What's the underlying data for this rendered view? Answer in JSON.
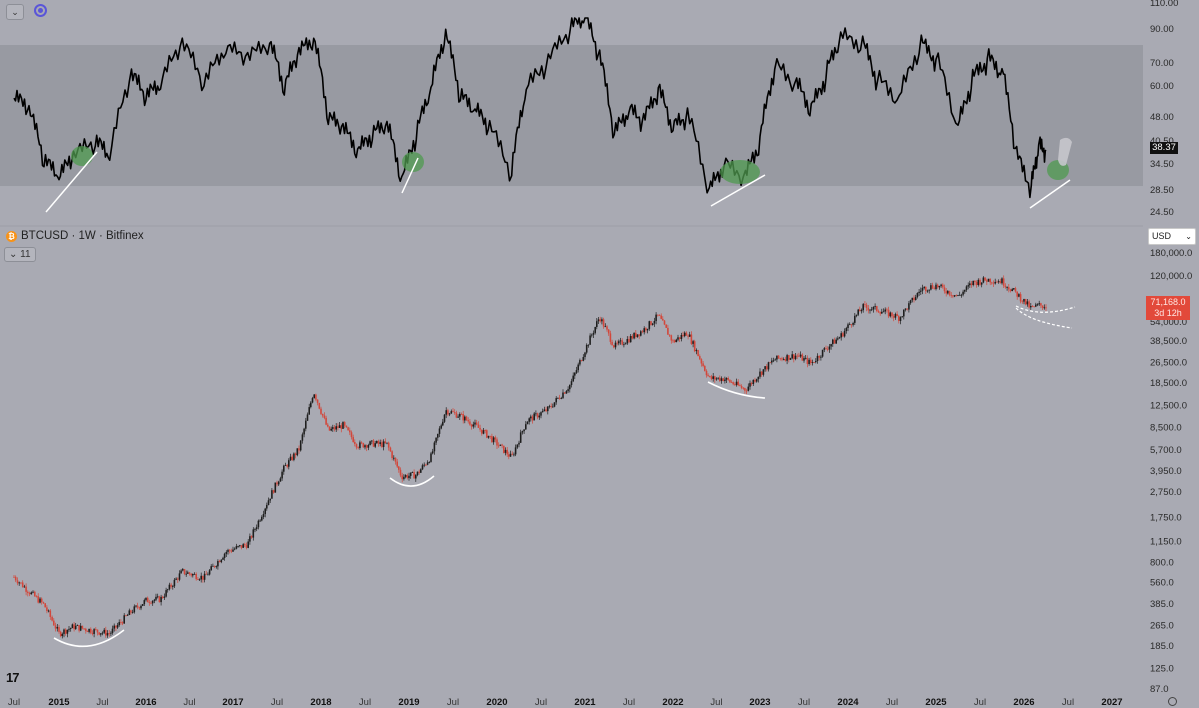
{
  "colors": {
    "background": "#a9aab3",
    "rsi_band": "#989aa2",
    "rsi_line": "#000000",
    "candle_up": "#1e1e1e",
    "candle_down": "#d2473b",
    "highlight_green": "#4f9a4f",
    "annotation_white": "#ffffff",
    "price_tag": "#e2493a"
  },
  "icons": [
    "chevron-down-icon",
    "sync-icon",
    "bitcoin-icon",
    "tradingview-logo-icon",
    "settings-icon"
  ],
  "header": {
    "chevron_glyph": "⌄",
    "sync_icon": "sync-icon"
  },
  "symbol": {
    "text": "BTCUSD · 1W · Bitfinex",
    "icon_letter": "₿",
    "count_label": "⌄ 11"
  },
  "currency_select": {
    "value": "USD"
  },
  "rsi_panel": {
    "current_value": "38.37",
    "axis_ticks": [
      "110.00",
      "90.00",
      "70.00",
      "60.00",
      "48.00",
      "40.50",
      "34.50",
      "28.50",
      "24.50"
    ],
    "band": [
      30,
      70
    ]
  },
  "price_panel": {
    "current_price": "71,168.0",
    "countdown": "3d 12h",
    "axis_ticks": [
      "180,000.0",
      "120,000.0",
      "80,000.0",
      "54,000.0",
      "38,500.0",
      "26,500.0",
      "18,500.0",
      "12,500.0",
      "8,500.0",
      "5,700.0",
      "3,950.0",
      "2,750.0",
      "1,750.0",
      "1,150.0",
      "800.0",
      "560.0",
      "385.0",
      "265.0",
      "185.0",
      "125.0",
      "87.0"
    ]
  },
  "time_axis": [
    "Jul",
    "2015",
    "Jul",
    "2016",
    "Jul",
    "2017",
    "Jul",
    "2018",
    "Jul",
    "2019",
    "Jul",
    "2020",
    "Jul",
    "2021",
    "Jul",
    "2022",
    "Jul",
    "2023",
    "Jul",
    "2024",
    "Jul",
    "2025",
    "Jul",
    "2026",
    "Jul",
    "2027"
  ],
  "logo": {
    "text": "17"
  },
  "chart_data": [
    {
      "type": "line",
      "title": "",
      "y_scale": "log",
      "ylim": [
        22,
        112
      ],
      "band_fill": [
        30,
        70
      ],
      "x": [
        "2014-07",
        "2014-09",
        "2014-11",
        "2015-01",
        "2015-03",
        "2015-06",
        "2015-08",
        "2015-11",
        "2016-01",
        "2016-03",
        "2016-06",
        "2016-09",
        "2016-12",
        "2017-03",
        "2017-06",
        "2017-08",
        "2017-10",
        "2017-12",
        "2018-02",
        "2018-04",
        "2018-06",
        "2018-08",
        "2018-10",
        "2018-12",
        "2019-02",
        "2019-04",
        "2019-06",
        "2019-08",
        "2019-10",
        "2019-12",
        "2020-03",
        "2020-05",
        "2020-08",
        "2020-11",
        "2021-01",
        "2021-03",
        "2021-05",
        "2021-07",
        "2021-09",
        "2021-11",
        "2022-01",
        "2022-03",
        "2022-06",
        "2022-08",
        "2022-11",
        "2023-01",
        "2023-03",
        "2023-06",
        "2023-08",
        "2023-10",
        "2023-12",
        "2024-03",
        "2024-05",
        "2024-08",
        "2024-11",
        "2025-01",
        "2025-04",
        "2025-06",
        "2025-08",
        "2025-10",
        "2025-12",
        "2026-02",
        "2026-03",
        "2026-04"
      ],
      "series": [
        {
          "values": [
            55,
            50,
            35,
            31,
            36,
            40,
            36,
            64,
            55,
            60,
            80,
            60,
            77,
            72,
            80,
            58,
            75,
            82,
            47,
            44,
            37,
            42,
            45,
            30,
            42,
            58,
            85,
            55,
            50,
            44,
            32,
            58,
            70,
            90,
            98,
            72,
            42,
            50,
            46,
            58,
            44,
            48,
            28,
            34,
            31,
            40,
            68,
            60,
            50,
            64,
            84,
            80,
            62,
            54,
            80,
            72,
            44,
            62,
            72,
            66,
            36,
            29,
            39,
            38
          ]
        }
      ]
    },
    {
      "type": "candlestick",
      "title": "BTCUSD · 1W · Bitfinex",
      "y_scale": "log",
      "ylim": [
        87,
        180000
      ],
      "x": [
        "2014-07",
        "2014-09",
        "2014-11",
        "2015-01",
        "2015-03",
        "2015-06",
        "2015-08",
        "2015-11",
        "2016-01",
        "2016-03",
        "2016-06",
        "2016-09",
        "2016-12",
        "2017-03",
        "2017-06",
        "2017-08",
        "2017-10",
        "2017-12",
        "2018-02",
        "2018-04",
        "2018-06",
        "2018-08",
        "2018-10",
        "2018-12",
        "2019-02",
        "2019-04",
        "2019-06",
        "2019-08",
        "2019-10",
        "2019-12",
        "2020-03",
        "2020-05",
        "2020-08",
        "2020-11",
        "2021-01",
        "2021-03",
        "2021-05",
        "2021-07",
        "2021-09",
        "2021-11",
        "2022-01",
        "2022-03",
        "2022-06",
        "2022-08",
        "2022-11",
        "2023-01",
        "2023-03",
        "2023-06",
        "2023-08",
        "2023-10",
        "2023-12",
        "2024-03",
        "2024-05",
        "2024-08",
        "2024-11",
        "2025-01",
        "2025-04",
        "2025-06",
        "2025-08",
        "2025-10",
        "2025-12",
        "2026-02",
        "2026-03",
        "2026-04"
      ],
      "series": [
        {
          "name": "BTCUSD",
          "close": [
            620,
            480,
            380,
            230,
            260,
            240,
            230,
            340,
            410,
            420,
            680,
            610,
            960,
            1100,
            2500,
            4200,
            5800,
            16000,
            8000,
            8800,
            6200,
            6400,
            6300,
            3600,
            3700,
            5100,
            11500,
            10400,
            8800,
            7200,
            5000,
            9500,
            11700,
            18000,
            33000,
            59000,
            35000,
            40000,
            47000,
            60000,
            38000,
            45000,
            20000,
            20000,
            16500,
            22000,
            28000,
            30000,
            26000,
            34000,
            42000,
            70000,
            67000,
            58000,
            96000,
            102000,
            84000,
            107000,
            113000,
            110000,
            88000,
            68000,
            72000,
            71168
          ]
        }
      ]
    }
  ]
}
